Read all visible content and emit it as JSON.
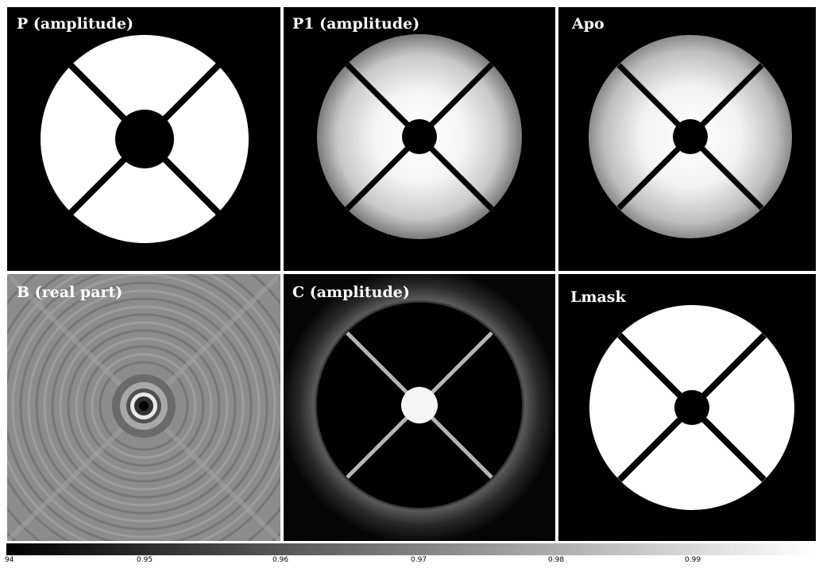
{
  "panels": [
    {
      "id": "P",
      "label": "P (amplitude)"
    },
    {
      "id": "P1",
      "label": "P1 (amplitude)"
    },
    {
      "id": "Apo",
      "label": "Apo"
    },
    {
      "id": "B",
      "label": "B (real part)"
    },
    {
      "id": "C",
      "label": "C (amplitude)"
    },
    {
      "id": "Lmask",
      "label": "Lmask"
    }
  ],
  "colorbar": {
    "colors": {
      "low": "#000000",
      "high": "#ffffff"
    },
    "ticks": [
      "94",
      "0.95",
      "0.96",
      "0.97",
      "0.98",
      "0.99"
    ]
  }
}
